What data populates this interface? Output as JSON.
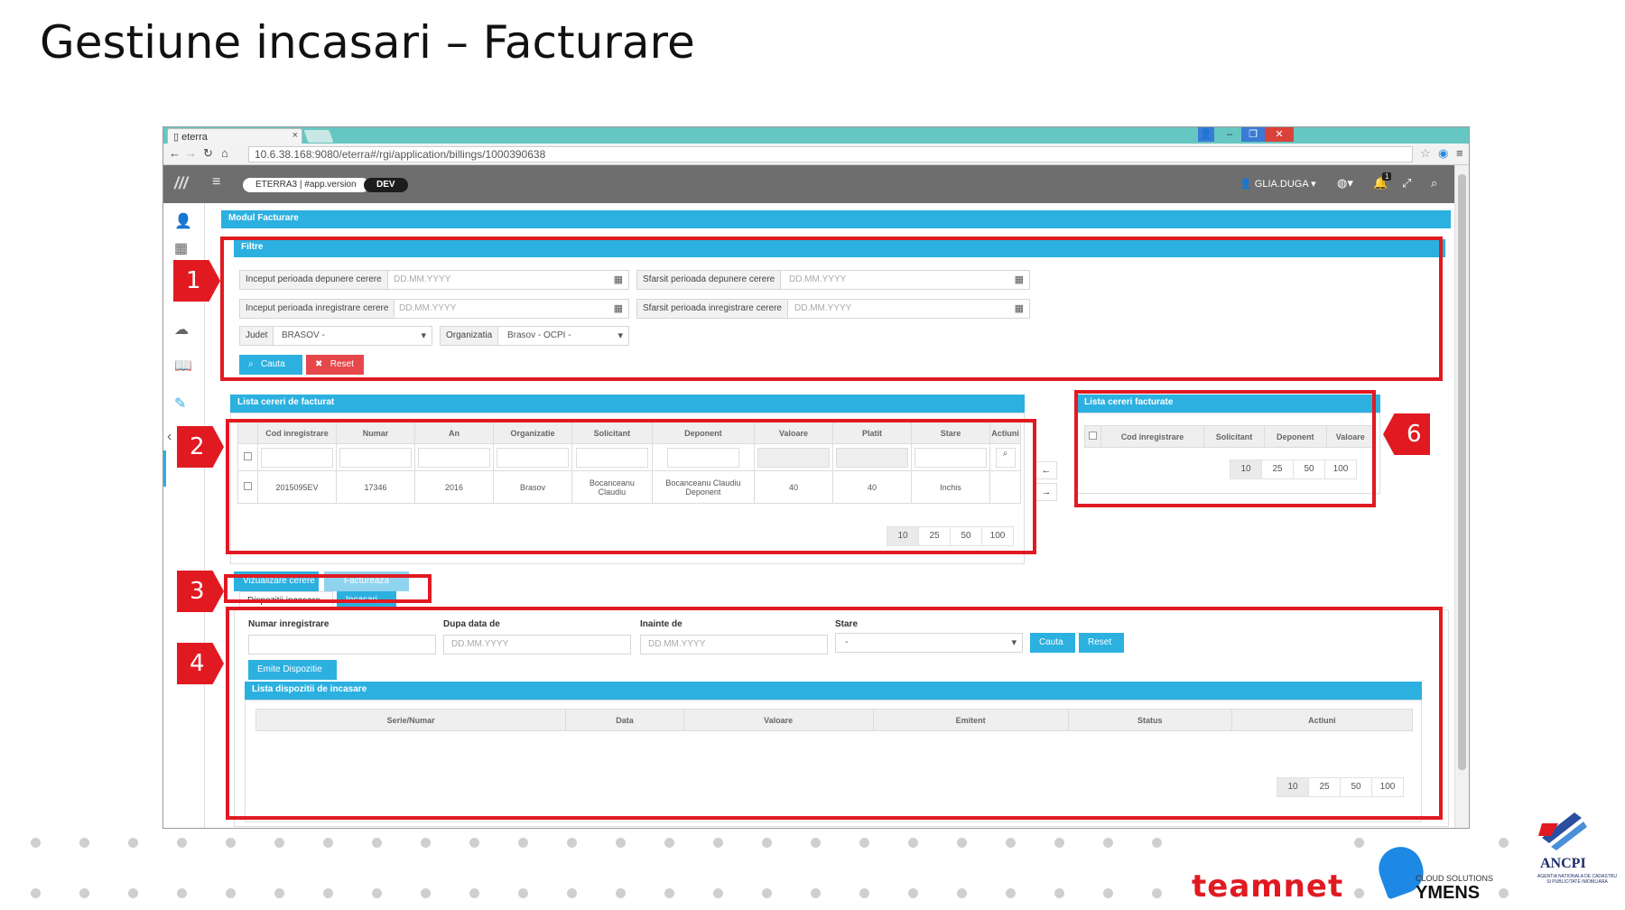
{
  "slide": {
    "title": "Gestiune incasari – Facturare"
  },
  "browser": {
    "tab_title": "eterra",
    "tab_close": "×",
    "url": "10.6.38.168:9080/eterra#/rgi/application/billings/1000390638",
    "win_min": "–",
    "win_max": "❐",
    "win_close": "✕"
  },
  "appbar": {
    "logo": "///",
    "version": "ETERRA3 | #app.version",
    "env": "DEV",
    "user": "GLIA.DUGA",
    "notifications": "1"
  },
  "module": {
    "title": "Modul Facturare"
  },
  "filters": {
    "title": "Filtre",
    "start_submit_label": "Inceput perioada depunere cerere",
    "end_submit_label": "Sfarsit perioada depunere cerere",
    "start_reg_label": "Inceput perioada inregistrare cerere",
    "end_reg_label": "Sfarsit perioada inregistrare cerere",
    "date_placeholder": "DD.MM.YYYY",
    "judet_label": "Judet",
    "judet_value": "BRASOV -",
    "org_label": "Organizatia",
    "org_value": "Brasov - OCPI -",
    "search_label": "Cauta",
    "reset_label": "Reset"
  },
  "requests": {
    "title": "Lista cereri de facturat",
    "columns": [
      "Cod inregistrare",
      "Numar",
      "An",
      "Organizatie",
      "Solicitant",
      "Deponent",
      "Valoare",
      "Platit",
      "Stare",
      "Actiuni"
    ],
    "rows": [
      [
        "2015095EV",
        "17346",
        "2016",
        "Brasov",
        "Bocanceanu Claudiu",
        "Bocanceanu Claudiu Deponent",
        "40",
        "40",
        "Inchis",
        ""
      ]
    ],
    "pages": [
      "10",
      "25",
      "50",
      "100"
    ]
  },
  "billed": {
    "title": "Lista cereri facturate",
    "columns": [
      "Cod inregistrare",
      "Solicitant",
      "Deponent",
      "Valoare"
    ],
    "pages": [
      "10",
      "25",
      "50",
      "100"
    ]
  },
  "actions": {
    "view_label": "Vizualizare cerere",
    "bill_label": "Factureaza"
  },
  "tabs": {
    "dispozitii": "Dispozitii incasare",
    "incasari": "Incasari"
  },
  "dispozitii": {
    "nr_label": "Numar inregistrare",
    "after_label": "Dupa data de",
    "before_label": "Inainte de",
    "stare_label": "Stare",
    "date_placeholder": "DD.MM.YYYY",
    "stare_value": "-",
    "search_label": "Cauta",
    "reset_label": "Reset",
    "emit_label": "Emite Dispozitie",
    "list_title": "Lista dispozitii de incasare",
    "columns": [
      "Serie/Numar",
      "Data",
      "Valoare",
      "Emitent",
      "Status",
      "Actiuni"
    ],
    "pages": [
      "10",
      "25",
      "50",
      "100"
    ]
  },
  "markers": [
    "1",
    "2",
    "3",
    "4",
    "6"
  ],
  "logos": {
    "teamnet": "teamnet",
    "ymens": "YMENS",
    "ymens_small": "CLOUD SOLUTIONS",
    "ancpi": "ANCPI",
    "ancpi_sub": "AGENTIA NATIONALA DE CADASTRU SI PUBLICITATE IMOBILIARA"
  },
  "colors": {
    "accent": "#2cb0e0",
    "marker_red": "#e11a22",
    "reset_red": "#e5474b",
    "teamnet": "#e11a22",
    "ymens": "#1e88e5"
  }
}
